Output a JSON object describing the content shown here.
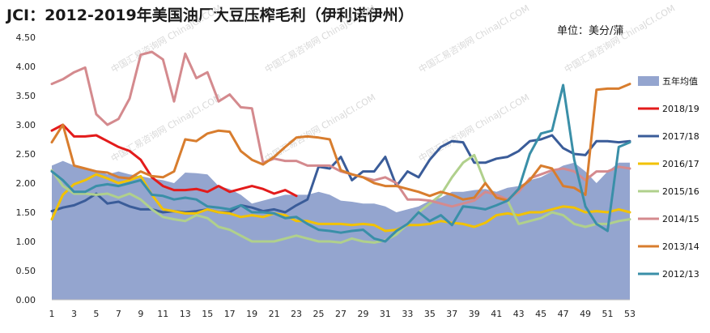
{
  "title": "JCI：2012-2019年美国油厂大豆压榨毛利（伊利诺伊州）",
  "unit": "单位：美分/蒲",
  "chart_data": {
    "type": "line",
    "title": "JCI：2012-2019年美国油厂大豆压榨毛利（伊利诺伊州）",
    "ylabel": "",
    "xlabel": "",
    "ylim": [
      0,
      4.5
    ],
    "xlim": [
      1,
      53
    ],
    "yticks": [
      "0.00",
      "0.50",
      "1.00",
      "1.50",
      "2.00",
      "2.50",
      "3.00",
      "3.50",
      "4.00",
      "4.50"
    ],
    "xticks": [
      1,
      3,
      5,
      7,
      9,
      11,
      13,
      15,
      17,
      19,
      21,
      23,
      25,
      27,
      29,
      31,
      33,
      35,
      37,
      39,
      41,
      43,
      45,
      47,
      49,
      51,
      53
    ],
    "grid": false,
    "legend_position": "right",
    "series": [
      {
        "name": "五年均值",
        "kind": "area",
        "color": "#94a5cf",
        "x": [
          1,
          2,
          3,
          4,
          5,
          6,
          7,
          8,
          9,
          10,
          11,
          12,
          13,
          14,
          15,
          16,
          17,
          18,
          19,
          20,
          21,
          22,
          23,
          24,
          25,
          26,
          27,
          28,
          29,
          30,
          31,
          32,
          33,
          34,
          35,
          36,
          37,
          38,
          39,
          40,
          41,
          42,
          43,
          44,
          45,
          46,
          47,
          48,
          49,
          50,
          51,
          52,
          53
        ],
        "y": [
          2.3,
          2.38,
          2.3,
          2.25,
          2.22,
          2.15,
          2.2,
          2.15,
          2.12,
          2.08,
          2.05,
          2.0,
          2.18,
          2.17,
          2.15,
          1.95,
          1.9,
          1.8,
          1.65,
          1.7,
          1.75,
          1.8,
          1.8,
          1.8,
          1.85,
          1.8,
          1.7,
          1.68,
          1.65,
          1.65,
          1.6,
          1.5,
          1.55,
          1.6,
          1.7,
          1.75,
          1.85,
          1.85,
          1.88,
          1.9,
          1.85,
          1.92,
          1.95,
          2.05,
          2.1,
          2.2,
          2.3,
          2.35,
          2.2,
          2.0,
          2.2,
          2.35,
          2.35
        ]
      },
      {
        "name": "2018/19",
        "color": "#e31b1b",
        "x": [
          1,
          2,
          3,
          4,
          5,
          6,
          7,
          8,
          9,
          10,
          11,
          12,
          13,
          14,
          15,
          16,
          17,
          18,
          19,
          20,
          21,
          22,
          23
        ],
        "y": [
          2.9,
          3.0,
          2.8,
          2.8,
          2.82,
          2.72,
          2.62,
          2.55,
          2.4,
          2.1,
          1.95,
          1.88,
          1.88,
          1.9,
          1.85,
          1.95,
          1.85,
          1.9,
          1.95,
          1.9,
          1.82,
          1.88,
          1.78
        ]
      },
      {
        "name": "2017/18",
        "color": "#3a5c99",
        "x": [
          1,
          2,
          3,
          4,
          5,
          6,
          7,
          8,
          9,
          10,
          11,
          12,
          13,
          14,
          15,
          16,
          17,
          18,
          19,
          20,
          21,
          22,
          23,
          24,
          25,
          26,
          27,
          28,
          29,
          30,
          31,
          32,
          33,
          34,
          35,
          36,
          37,
          38,
          39,
          40,
          41,
          42,
          43,
          44,
          45,
          46,
          47,
          48,
          49,
          50,
          51,
          52,
          53
        ],
        "y": [
          1.52,
          1.58,
          1.62,
          1.7,
          1.82,
          1.65,
          1.68,
          1.6,
          1.55,
          1.55,
          1.5,
          1.52,
          1.5,
          1.52,
          1.55,
          1.5,
          1.5,
          1.62,
          1.58,
          1.52,
          1.55,
          1.5,
          1.62,
          1.72,
          2.28,
          2.25,
          2.45,
          2.05,
          2.2,
          2.2,
          2.45,
          1.95,
          2.2,
          2.1,
          2.4,
          2.62,
          2.72,
          2.7,
          2.35,
          2.35,
          2.42,
          2.45,
          2.55,
          2.72,
          2.75,
          2.82,
          2.6,
          2.5,
          2.48,
          2.72,
          2.72,
          2.7,
          2.72
        ]
      },
      {
        "name": "2016/17",
        "color": "#f2c200",
        "x": [
          1,
          2,
          3,
          4,
          5,
          6,
          7,
          8,
          9,
          10,
          11,
          12,
          13,
          14,
          15,
          16,
          17,
          18,
          19,
          20,
          21,
          22,
          23,
          24,
          25,
          26,
          27,
          28,
          29,
          30,
          31,
          32,
          33,
          34,
          35,
          36,
          37,
          38,
          39,
          40,
          41,
          42,
          43,
          44,
          45,
          46,
          47,
          48,
          49,
          50,
          51,
          52,
          53
        ],
        "y": [
          1.38,
          1.8,
          1.98,
          2.05,
          2.15,
          2.08,
          2.0,
          2.05,
          2.12,
          1.8,
          1.55,
          1.52,
          1.48,
          1.48,
          1.55,
          1.5,
          1.48,
          1.42,
          1.45,
          1.42,
          1.48,
          1.45,
          1.35,
          1.35,
          1.3,
          1.3,
          1.3,
          1.28,
          1.3,
          1.28,
          1.18,
          1.2,
          1.28,
          1.28,
          1.3,
          1.35,
          1.32,
          1.3,
          1.25,
          1.32,
          1.45,
          1.48,
          1.45,
          1.5,
          1.5,
          1.55,
          1.6,
          1.58,
          1.5,
          1.52,
          1.5,
          1.55,
          1.5
        ]
      },
      {
        "name": "2015/16",
        "color": "#b0d08c",
        "x": [
          1,
          2,
          3,
          4,
          5,
          6,
          7,
          8,
          9,
          10,
          11,
          12,
          13,
          14,
          15,
          16,
          17,
          18,
          19,
          20,
          21,
          22,
          23,
          24,
          25,
          26,
          27,
          28,
          29,
          30,
          31,
          32,
          33,
          34,
          35,
          36,
          37,
          38,
          39,
          40,
          41,
          42,
          43,
          44,
          45,
          46,
          47,
          48,
          49,
          50,
          51,
          52,
          53
        ],
        "y": [
          2.22,
          1.95,
          1.82,
          1.82,
          1.8,
          1.82,
          1.75,
          1.82,
          1.72,
          1.55,
          1.42,
          1.38,
          1.35,
          1.45,
          1.4,
          1.25,
          1.2,
          1.1,
          1.0,
          1.0,
          1.0,
          1.05,
          1.1,
          1.05,
          1.0,
          1.0,
          0.98,
          1.05,
          1.0,
          0.98,
          1.02,
          1.12,
          1.3,
          1.5,
          1.65,
          1.8,
          2.1,
          2.35,
          2.48,
          2.0,
          1.75,
          1.7,
          1.3,
          1.35,
          1.4,
          1.5,
          1.45,
          1.3,
          1.25,
          1.3,
          1.3,
          1.35,
          1.38
        ]
      },
      {
        "name": "2014/15",
        "color": "#d48a8e",
        "x": [
          1,
          2,
          3,
          4,
          5,
          6,
          7,
          8,
          9,
          10,
          11,
          12,
          13,
          14,
          15,
          16,
          17,
          18,
          19,
          20,
          21,
          22,
          23,
          24,
          25,
          26,
          27,
          28,
          29,
          30,
          31,
          32,
          33,
          34,
          35,
          36,
          37,
          38,
          39,
          40,
          41,
          42,
          43,
          44,
          45,
          46,
          47,
          48,
          49,
          50,
          51,
          52,
          53
        ],
        "y": [
          3.7,
          3.78,
          3.9,
          3.98,
          3.18,
          3.0,
          3.1,
          3.45,
          4.2,
          4.25,
          4.12,
          3.4,
          4.22,
          3.8,
          3.9,
          3.4,
          3.52,
          3.3,
          3.28,
          2.35,
          2.42,
          2.38,
          2.38,
          2.3,
          2.3,
          2.3,
          2.2,
          2.15,
          2.1,
          2.05,
          2.1,
          2.0,
          1.72,
          1.72,
          1.7,
          1.65,
          1.6,
          1.65,
          1.7,
          1.85,
          1.8,
          1.72,
          1.85,
          2.08,
          2.15,
          2.22,
          2.25,
          2.2,
          2.05,
          2.2,
          2.2,
          2.28,
          2.25
        ]
      },
      {
        "name": "2013/14",
        "color": "#d87d2e",
        "x": [
          1,
          2,
          3,
          4,
          5,
          6,
          7,
          8,
          9,
          10,
          11,
          12,
          13,
          14,
          15,
          16,
          17,
          18,
          19,
          20,
          21,
          22,
          23,
          24,
          25,
          26,
          27,
          28,
          29,
          30,
          31,
          32,
          33,
          34,
          35,
          36,
          37,
          38,
          39,
          40,
          41,
          42,
          43,
          44,
          45,
          46,
          47,
          48,
          49,
          50,
          51,
          52,
          53
        ],
        "y": [
          2.7,
          3.0,
          2.3,
          2.25,
          2.2,
          2.18,
          2.1,
          2.08,
          2.2,
          2.12,
          2.1,
          2.2,
          2.75,
          2.72,
          2.85,
          2.9,
          2.88,
          2.55,
          2.4,
          2.32,
          2.45,
          2.62,
          2.78,
          2.8,
          2.78,
          2.75,
          2.22,
          2.15,
          2.1,
          2.0,
          1.95,
          1.95,
          1.9,
          1.85,
          1.78,
          1.85,
          1.8,
          1.72,
          1.75,
          2.0,
          1.75,
          1.7,
          1.9,
          2.05,
          2.3,
          2.25,
          1.95,
          1.92,
          1.8,
          3.6,
          3.62,
          3.62,
          3.7
        ]
      },
      {
        "name": "2012/13",
        "color": "#3a8fa8",
        "x": [
          1,
          2,
          3,
          4,
          5,
          6,
          7,
          8,
          9,
          10,
          11,
          12,
          13,
          14,
          15,
          16,
          17,
          18,
          19,
          20,
          21,
          22,
          23,
          24,
          25,
          26,
          27,
          28,
          29,
          30,
          31,
          32,
          33,
          34,
          35,
          36,
          37,
          38,
          39,
          40,
          41,
          42,
          43,
          44,
          45,
          46,
          47,
          48,
          49,
          50,
          51,
          52,
          53
        ],
        "y": [
          2.2,
          2.05,
          1.85,
          1.85,
          1.95,
          1.98,
          1.95,
          2.0,
          2.05,
          1.8,
          1.78,
          1.72,
          1.75,
          1.72,
          1.6,
          1.58,
          1.55,
          1.62,
          1.5,
          1.5,
          1.48,
          1.4,
          1.42,
          1.3,
          1.2,
          1.18,
          1.15,
          1.18,
          1.2,
          1.05,
          1.0,
          1.18,
          1.3,
          1.5,
          1.35,
          1.45,
          1.28,
          1.6,
          1.58,
          1.55,
          1.62,
          1.7,
          1.9,
          2.5,
          2.85,
          2.9,
          3.68,
          2.4,
          1.6,
          1.3,
          1.18,
          2.62,
          2.7
        ]
      }
    ],
    "watermark": "中国汇易咨询网 ChinaJCI.COM"
  }
}
